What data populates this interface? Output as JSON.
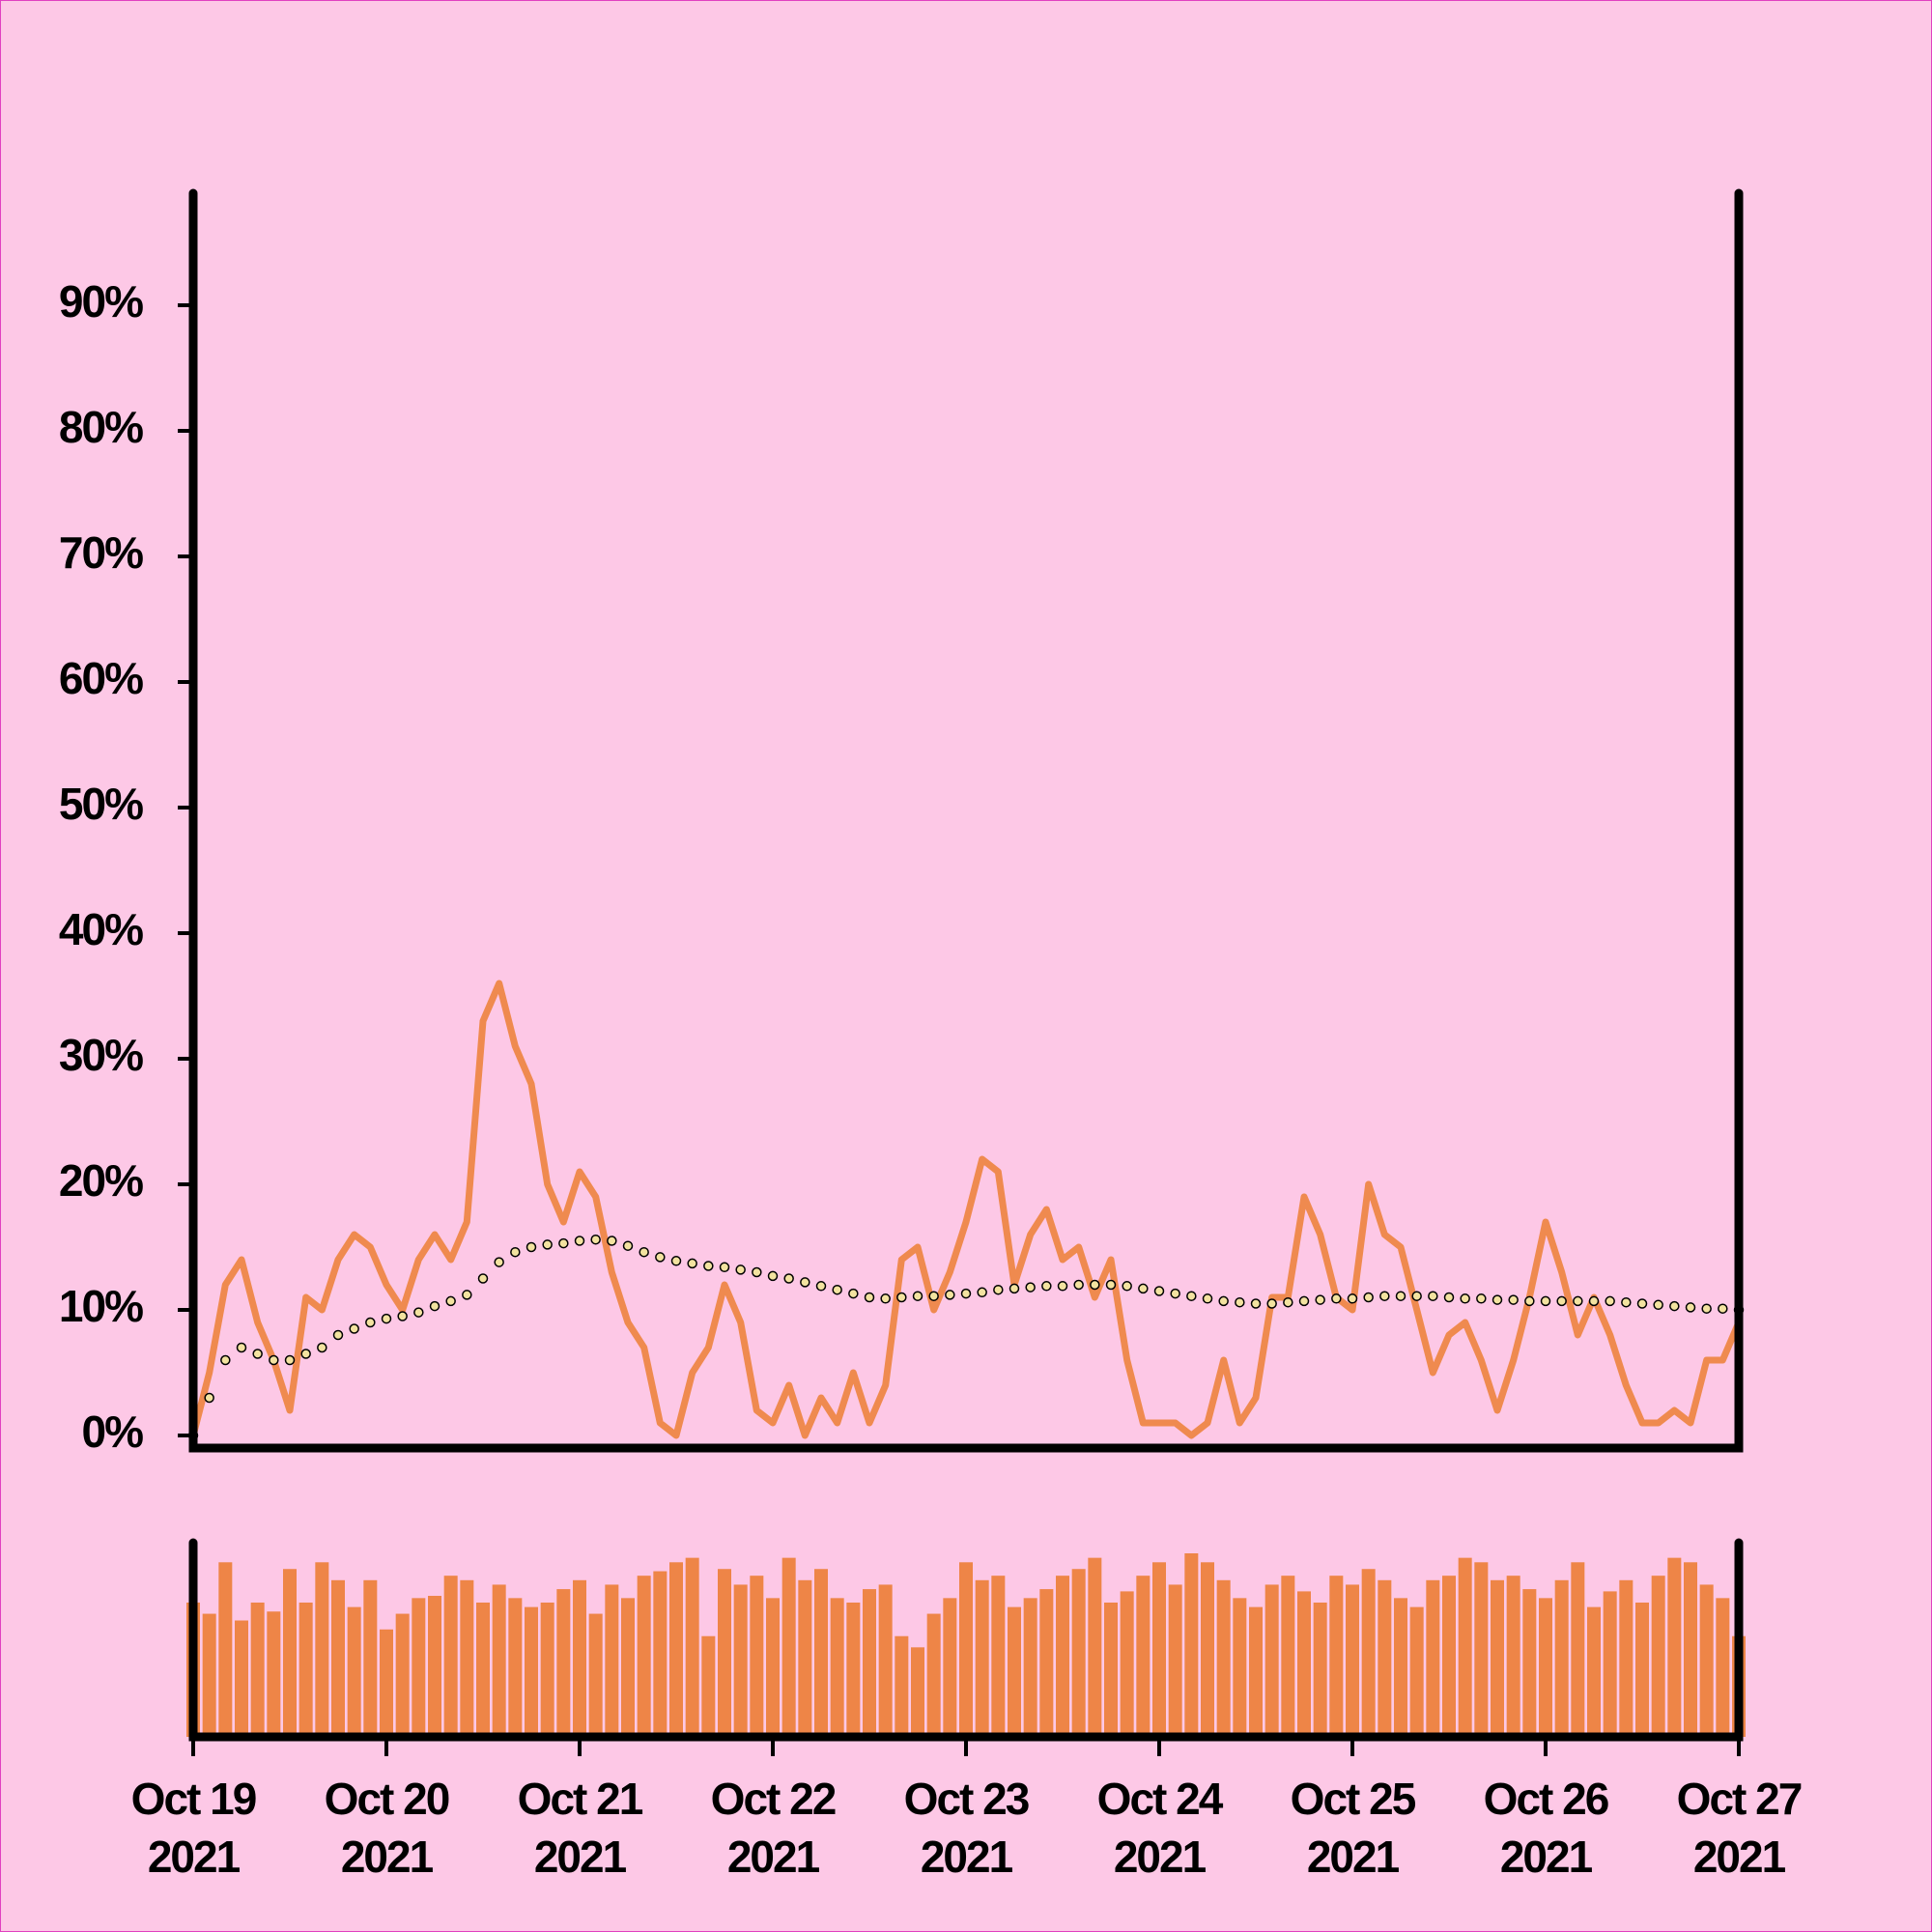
{
  "chart_data": {
    "type": "line",
    "x": [
      "2021-10-19T00:00Z",
      "2021-10-19T02:00Z",
      "2021-10-19T04:00Z",
      "2021-10-19T06:00Z",
      "2021-10-19T08:00Z",
      "2021-10-19T10:00Z",
      "2021-10-19T12:00Z",
      "2021-10-19T14:00Z",
      "2021-10-19T16:00Z",
      "2021-10-19T18:00Z",
      "2021-10-19T20:00Z",
      "2021-10-19T22:00Z",
      "2021-10-20T00:00Z",
      "2021-10-20T02:00Z",
      "2021-10-20T04:00Z",
      "2021-10-20T06:00Z",
      "2021-10-20T08:00Z",
      "2021-10-20T10:00Z",
      "2021-10-20T12:00Z",
      "2021-10-20T14:00Z",
      "2021-10-20T16:00Z",
      "2021-10-20T18:00Z",
      "2021-10-20T20:00Z",
      "2021-10-20T22:00Z",
      "2021-10-21T00:00Z",
      "2021-10-21T02:00Z",
      "2021-10-21T04:00Z",
      "2021-10-21T06:00Z",
      "2021-10-21T08:00Z",
      "2021-10-21T10:00Z",
      "2021-10-21T12:00Z",
      "2021-10-21T14:00Z",
      "2021-10-21T16:00Z",
      "2021-10-21T18:00Z",
      "2021-10-21T20:00Z",
      "2021-10-21T22:00Z",
      "2021-10-22T00:00Z",
      "2021-10-22T02:00Z",
      "2021-10-22T04:00Z",
      "2021-10-22T06:00Z",
      "2021-10-22T08:00Z",
      "2021-10-22T10:00Z",
      "2021-10-22T12:00Z",
      "2021-10-22T14:00Z",
      "2021-10-22T16:00Z",
      "2021-10-22T18:00Z",
      "2021-10-22T20:00Z",
      "2021-10-22T22:00Z",
      "2021-10-23T00:00Z",
      "2021-10-23T02:00Z",
      "2021-10-23T04:00Z",
      "2021-10-23T06:00Z",
      "2021-10-23T08:00Z",
      "2021-10-23T10:00Z",
      "2021-10-23T12:00Z",
      "2021-10-23T14:00Z",
      "2021-10-23T16:00Z",
      "2021-10-23T18:00Z",
      "2021-10-23T20:00Z",
      "2021-10-23T22:00Z",
      "2021-10-24T00:00Z",
      "2021-10-24T02:00Z",
      "2021-10-24T04:00Z",
      "2021-10-24T06:00Z",
      "2021-10-24T08:00Z",
      "2021-10-24T10:00Z",
      "2021-10-24T12:00Z",
      "2021-10-24T14:00Z",
      "2021-10-24T16:00Z",
      "2021-10-24T18:00Z",
      "2021-10-24T20:00Z",
      "2021-10-24T22:00Z",
      "2021-10-25T00:00Z",
      "2021-10-25T02:00Z",
      "2021-10-25T04:00Z",
      "2021-10-25T06:00Z",
      "2021-10-25T08:00Z",
      "2021-10-25T10:00Z",
      "2021-10-25T12:00Z",
      "2021-10-25T14:00Z",
      "2021-10-25T16:00Z",
      "2021-10-25T18:00Z",
      "2021-10-25T20:00Z",
      "2021-10-25T22:00Z",
      "2021-10-26T00:00Z",
      "2021-10-26T02:00Z",
      "2021-10-26T04:00Z",
      "2021-10-26T06:00Z",
      "2021-10-26T08:00Z",
      "2021-10-26T10:00Z",
      "2021-10-26T12:00Z",
      "2021-10-26T14:00Z",
      "2021-10-26T16:00Z",
      "2021-10-26T18:00Z",
      "2021-10-26T20:00Z",
      "2021-10-26T22:00Z",
      "2021-10-27T00:00Z"
    ],
    "series": [
      {
        "color": "#ef8a4f",
        "values": [
          0,
          5,
          12,
          14,
          9,
          6,
          2,
          11,
          10,
          14,
          16,
          15,
          12,
          10,
          14,
          16,
          14,
          17,
          33,
          36,
          31,
          28,
          20,
          17,
          21,
          19,
          13,
          9,
          7,
          1,
          0,
          5,
          7,
          12,
          9,
          2,
          1,
          4,
          0,
          3,
          1,
          5,
          1,
          4,
          14,
          15,
          10,
          13,
          17,
          22,
          21,
          12,
          16,
          18,
          14,
          15,
          11,
          14,
          6,
          1,
          1,
          1,
          0,
          1,
          6,
          1,
          3,
          11,
          11,
          19,
          16,
          11,
          10,
          20,
          16,
          15,
          10,
          5,
          8,
          9,
          6,
          2,
          6,
          11,
          17,
          13,
          8,
          11,
          8,
          4,
          1,
          1,
          2,
          1,
          6,
          6,
          9
        ]
      },
      {
        "color": "#f3e3a0",
        "style": "dots",
        "values": [
          0,
          3,
          6,
          7,
          6.5,
          6,
          6,
          6.5,
          7,
          8,
          8.5,
          9,
          9.3,
          9.5,
          9.8,
          10.3,
          10.7,
          11.2,
          12.5,
          13.8,
          14.6,
          15,
          15.2,
          15.3,
          15.5,
          15.6,
          15.5,
          15.1,
          14.6,
          14.2,
          13.9,
          13.7,
          13.5,
          13.4,
          13.2,
          13,
          12.7,
          12.5,
          12.2,
          11.9,
          11.6,
          11.3,
          11,
          10.9,
          11,
          11.1,
          11.1,
          11.2,
          11.3,
          11.4,
          11.6,
          11.7,
          11.8,
          11.9,
          11.9,
          12,
          12,
          12,
          11.9,
          11.7,
          11.5,
          11.3,
          11.1,
          10.9,
          10.7,
          10.6,
          10.5,
          10.5,
          10.6,
          10.7,
          10.8,
          10.9,
          10.9,
          11,
          11.1,
          11.1,
          11.1,
          11.1,
          11,
          10.9,
          10.9,
          10.8,
          10.8,
          10.7,
          10.7,
          10.7,
          10.7,
          10.7,
          10.7,
          10.6,
          10.5,
          10.4,
          10.3,
          10.2,
          10.1,
          10.1,
          10
        ]
      },
      {
        "color": "#ee8547",
        "type": "bar",
        "values": [
          60,
          55,
          78,
          52,
          60,
          56,
          75,
          60,
          78,
          70,
          58,
          70,
          48,
          55,
          62,
          63,
          72,
          70,
          60,
          68,
          62,
          58,
          60,
          66,
          70,
          55,
          68,
          62,
          72,
          74,
          78,
          80,
          45,
          75,
          68,
          72,
          62,
          80,
          70,
          75,
          62,
          60,
          66,
          68,
          45,
          40,
          55,
          62,
          78,
          70,
          72,
          58,
          62,
          66,
          72,
          75,
          80,
          60,
          65,
          72,
          78,
          68,
          82,
          78,
          70,
          62,
          58,
          68,
          72,
          65,
          60,
          72,
          68,
          75,
          70,
          62,
          58,
          70,
          72,
          80,
          78,
          70,
          72,
          66,
          62,
          70,
          78,
          58,
          65,
          70,
          60,
          72,
          80,
          78,
          68,
          62,
          45
        ]
      }
    ],
    "xlim": [
      "2021-10-19T00:00Z",
      "2021-10-27T00:00Z"
    ],
    "xticks": [
      {
        "value": "2021-10-19T00:00Z",
        "label": [
          "Oct 19",
          "2021"
        ]
      },
      {
        "value": "2021-10-20T00:00Z",
        "label": [
          "Oct 20",
          "2021"
        ]
      },
      {
        "value": "2021-10-21T00:00Z",
        "label": [
          "Oct 21",
          "2021"
        ]
      },
      {
        "value": "2021-10-22T00:00Z",
        "label": [
          "Oct 22",
          "2021"
        ]
      },
      {
        "value": "2021-10-23T00:00Z",
        "label": [
          "Oct 23",
          "2021"
        ]
      },
      {
        "value": "2021-10-24T00:00Z",
        "label": [
          "Oct 24",
          "2021"
        ]
      },
      {
        "value": "2021-10-25T00:00Z",
        "label": [
          "Oct 25",
          "2021"
        ]
      },
      {
        "value": "2021-10-26T00:00Z",
        "label": [
          "Oct 26",
          "2021"
        ]
      },
      {
        "value": "2021-10-27T00:00Z",
        "label": [
          "Oct 27",
          "2021"
        ]
      }
    ],
    "ylim": [
      -1,
      99
    ],
    "yticks": [
      {
        "value": 0,
        "label": "0%"
      },
      {
        "value": 10,
        "label": "10%"
      },
      {
        "value": 20,
        "label": "20%"
      },
      {
        "value": 30,
        "label": "30%"
      },
      {
        "value": 40,
        "label": "40%"
      },
      {
        "value": 50,
        "label": "50%"
      },
      {
        "value": 60,
        "label": "60%"
      },
      {
        "value": 70,
        "label": "70%"
      },
      {
        "value": 80,
        "label": "80%"
      },
      {
        "value": 90,
        "label": "90%"
      }
    ]
  }
}
